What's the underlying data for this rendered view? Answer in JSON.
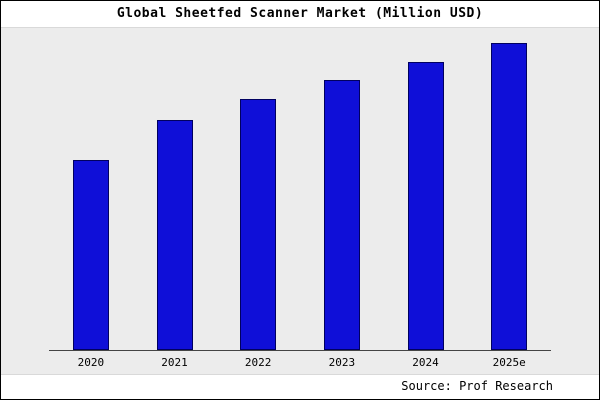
{
  "source": "Source: Prof Research",
  "chart_data": {
    "type": "bar",
    "title": "Global Sheetfed Scanner Market (Million USD)",
    "categories": [
      "2020",
      "2021",
      "2022",
      "2023",
      "2024",
      "2025e"
    ],
    "values": [
      62,
      75,
      82,
      88,
      94,
      100
    ],
    "xlabel": "",
    "ylabel": "",
    "ylim": [
      0,
      105
    ],
    "grid": false,
    "legend": false,
    "bar_color": "#0f0fd8",
    "bar_border_color": "#000060",
    "units": "relative index (no y-axis labels shown in chart)"
  }
}
